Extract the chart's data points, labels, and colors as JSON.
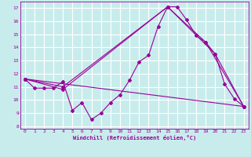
{
  "xlabel": "Windchill (Refroidissement éolien,°C)",
  "bg_color": "#c8ecec",
  "grid_color": "#ffffff",
  "line_color": "#990099",
  "xlim": [
    -0.5,
    23.5
  ],
  "ylim": [
    7.8,
    17.5
  ],
  "xticks": [
    0,
    1,
    2,
    3,
    4,
    5,
    6,
    7,
    8,
    9,
    10,
    11,
    12,
    13,
    14,
    15,
    16,
    17,
    18,
    19,
    20,
    21,
    22,
    23
  ],
  "yticks": [
    8,
    9,
    10,
    11,
    12,
    13,
    14,
    15,
    16,
    17
  ],
  "line1_x": [
    0,
    1,
    2,
    3,
    4,
    5,
    6,
    7,
    8,
    9,
    10,
    11,
    12,
    13,
    14,
    15,
    16,
    17,
    18,
    19,
    20,
    21,
    22,
    23
  ],
  "line1_y": [
    11.6,
    10.9,
    10.9,
    10.9,
    11.4,
    9.2,
    9.8,
    8.5,
    9.0,
    9.8,
    10.4,
    11.5,
    12.9,
    13.4,
    15.6,
    17.1,
    17.1,
    16.1,
    14.9,
    14.4,
    13.5,
    11.2,
    10.1,
    9.5
  ],
  "line2_x": [
    0,
    4,
    15,
    19,
    23
  ],
  "line2_y": [
    11.6,
    11.0,
    17.1,
    14.4,
    9.5
  ],
  "line3_x": [
    0,
    4,
    15,
    20,
    23
  ],
  "line3_y": [
    11.6,
    10.8,
    17.1,
    13.5,
    9.5
  ],
  "line4_x": [
    0,
    23
  ],
  "line4_y": [
    11.6,
    9.5
  ]
}
